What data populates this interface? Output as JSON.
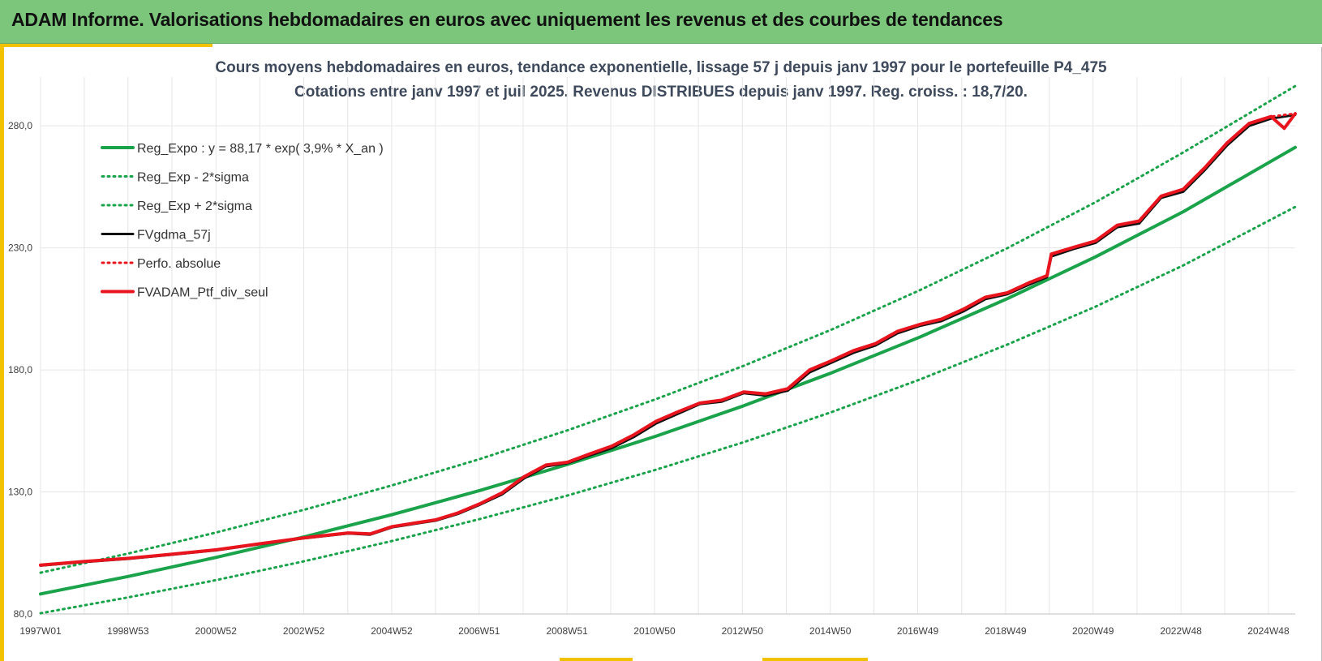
{
  "banner": {
    "title": "ADAM Informe. Valorisations hebdomadaires en euros avec uniquement les revenus et des courbes de tendances"
  },
  "colors": {
    "banner_bg": "#7bc67b",
    "accent_yellow": "#f2c200",
    "trend_green": "#1aa34a",
    "portfolio_red": "#e8141e",
    "smoothed_black": "#111111",
    "grid": "#e6e6e6"
  },
  "chart_data": {
    "type": "line",
    "title": "Cours moyens hebdomadaires  en euros, tendance exponentielle, lissage 57 j depuis janv 1997 pour le portefeuille P4_475",
    "subtitle": "Cotations entre janv 1997 et juil 2025. Revenus DISTRIBUES depuis janv 1997. Reg. croiss. : 18,7/20.",
    "xlabel": "",
    "ylabel": "",
    "x_range": [
      1997.0,
      2025.55
    ],
    "ylim": [
      80,
      300
    ],
    "y_ticks": [
      80,
      130,
      180,
      230,
      280
    ],
    "y_tick_labels": [
      "80,0",
      "130,0",
      "180,0",
      "230,0",
      "280,0"
    ],
    "x_ticks": [
      1997.0,
      1998.99,
      2000.99,
      2002.99,
      2004.99,
      2006.98,
      2008.98,
      2010.97,
      2012.97,
      2014.97,
      2016.96,
      2018.96,
      2020.95,
      2022.95,
      2024.94
    ],
    "x_tick_labels": [
      "1997W01",
      "1998W53",
      "2000W52",
      "2002W52",
      "2004W52",
      "2006W51",
      "2008W51",
      "2010W50",
      "2012W50",
      "2014W50",
      "2016W49",
      "2018W49",
      "2020W49",
      "2022W48",
      "2024W48"
    ],
    "grid": true,
    "legend_position": "top-left",
    "series": [
      {
        "name": "Reg_Expo : y = 88,17 *  exp( 3,9% *  X_an )",
        "style": "solid-thick",
        "color": "#1aa34a",
        "x": [
          1997,
          1999,
          2001,
          2003,
          2005,
          2007,
          2009,
          2011,
          2013,
          2015,
          2017,
          2019,
          2021,
          2023,
          2025.55
        ],
        "y": [
          88.2,
          95.4,
          103.2,
          111.6,
          120.7,
          130.6,
          141.3,
          152.8,
          165.3,
          178.8,
          193.4,
          209.2,
          226.3,
          244.8,
          271.2
        ]
      },
      {
        "name": "Reg_Exp - 2*sigma",
        "style": "dotted",
        "color": "#1aa34a",
        "x": [
          1997,
          1999,
          2001,
          2003,
          2005,
          2007,
          2009,
          2011,
          2013,
          2015,
          2017,
          2019,
          2021,
          2023,
          2025.55
        ],
        "y": [
          80.3,
          86.8,
          93.9,
          101.6,
          109.9,
          118.9,
          128.6,
          139.1,
          150.4,
          162.7,
          176.0,
          190.4,
          205.9,
          222.8,
          246.8
        ]
      },
      {
        "name": "Reg_Exp + 2*sigma",
        "style": "dotted",
        "color": "#1aa34a",
        "x": [
          1997,
          1999,
          2001,
          2003,
          2005,
          2007,
          2009,
          2011,
          2013,
          2015,
          2017,
          2019,
          2021,
          2023,
          2025.55
        ],
        "y": [
          96.9,
          104.8,
          113.4,
          122.7,
          132.7,
          143.5,
          155.3,
          168.0,
          181.7,
          196.5,
          212.6,
          229.9,
          248.7,
          269.1,
          296.3
        ]
      },
      {
        "name": "FVgdma_57j",
        "style": "solid",
        "color": "#111111",
        "x": [
          1997.0,
          1998.0,
          1999.0,
          2000.0,
          2001.0,
          2002.0,
          2003.0,
          2004.0,
          2004.5,
          2005.0,
          2006.0,
          2006.5,
          2007.0,
          2007.5,
          2008.0,
          2008.5,
          2009.0,
          2009.5,
          2010.0,
          2010.5,
          2011.0,
          2011.5,
          2012.0,
          2012.5,
          2013.0,
          2013.5,
          2014.0,
          2014.5,
          2015.0,
          2015.5,
          2016.0,
          2016.5,
          2017.0,
          2017.5,
          2018.0,
          2018.5,
          2019.0,
          2019.5,
          2019.9,
          2020.0,
          2020.5,
          2021.0,
          2021.5,
          2022.0,
          2022.5,
          2023.0,
          2023.5,
          2024.0,
          2024.5,
          2025.0,
          2025.55
        ],
        "y": [
          99.8,
          101.3,
          102.6,
          104.3,
          106.1,
          108.6,
          111.0,
          113.0,
          112.5,
          115.5,
          118.3,
          121.0,
          124.8,
          129.0,
          135.5,
          140.5,
          141.8,
          145.0,
          148.0,
          152.5,
          158.0,
          162.0,
          166.0,
          167.0,
          170.5,
          169.5,
          171.5,
          179.0,
          183.0,
          187.0,
          190.0,
          195.0,
          198.0,
          200.0,
          204.0,
          209.0,
          211.0,
          215.0,
          218.0,
          226.5,
          229.5,
          232.0,
          238.5,
          240.0,
          250.5,
          253.0,
          262.0,
          272.0,
          280.0,
          283.0,
          284.5
        ]
      },
      {
        "name": "Perfo. absolue",
        "style": "dotted",
        "color": "#e8141e",
        "x": [
          1997.0,
          1998.0,
          1999.0,
          2000.0,
          2001.0,
          2002.0,
          2003.0,
          2004.0,
          2004.5,
          2005.0,
          2006.0,
          2006.5,
          2007.0,
          2007.5,
          2008.0,
          2008.5,
          2009.0,
          2009.5,
          2010.0,
          2010.5,
          2011.0,
          2011.5,
          2012.0,
          2012.5,
          2013.0,
          2013.5,
          2014.0,
          2014.5,
          2015.0,
          2015.5,
          2016.0,
          2016.5,
          2017.0,
          2017.5,
          2018.0,
          2018.5,
          2019.0,
          2019.5,
          2019.9,
          2020.0,
          2020.5,
          2021.0,
          2021.5,
          2022.0,
          2022.5,
          2023.0,
          2023.5,
          2024.0,
          2024.5,
          2025.0,
          2025.55
        ],
        "y": [
          100.0,
          101.5,
          102.8,
          104.5,
          106.3,
          108.8,
          111.2,
          113.2,
          112.8,
          115.8,
          118.6,
          121.4,
          125.2,
          129.6,
          136.2,
          141.0,
          142.2,
          145.6,
          148.8,
          153.4,
          158.9,
          162.8,
          166.4,
          167.6,
          171.0,
          170.2,
          172.3,
          180.0,
          183.8,
          187.9,
          190.8,
          195.8,
          198.6,
          200.8,
          204.9,
          209.8,
          211.6,
          215.8,
          218.6,
          227.5,
          230.2,
          232.8,
          239.3,
          241.0,
          251.2,
          254.0,
          263.0,
          273.0,
          281.0,
          283.8,
          285.0
        ]
      },
      {
        "name": "FVADAM_Ptf_div_seul",
        "style": "solid-thick",
        "color": "#e8141e",
        "x": [
          1997.0,
          1998.0,
          1999.0,
          2000.0,
          2001.0,
          2002.0,
          2003.0,
          2004.0,
          2004.5,
          2005.0,
          2006.0,
          2006.5,
          2007.0,
          2007.5,
          2008.0,
          2008.5,
          2009.0,
          2009.5,
          2010.0,
          2010.5,
          2011.0,
          2011.5,
          2012.0,
          2012.5,
          2013.0,
          2013.5,
          2014.0,
          2014.5,
          2015.0,
          2015.5,
          2016.0,
          2016.5,
          2017.0,
          2017.5,
          2018.0,
          2018.5,
          2019.0,
          2019.5,
          2019.9,
          2020.0,
          2020.5,
          2021.0,
          2021.5,
          2022.0,
          2022.5,
          2023.0,
          2023.5,
          2024.0,
          2024.5,
          2025.0,
          2025.3,
          2025.55
        ],
        "y": [
          100.0,
          101.5,
          102.8,
          104.5,
          106.3,
          108.8,
          111.2,
          113.2,
          112.8,
          115.8,
          118.6,
          121.4,
          125.2,
          129.6,
          136.2,
          141.0,
          142.2,
          145.6,
          148.8,
          153.4,
          158.9,
          162.8,
          166.4,
          167.6,
          171.0,
          170.2,
          172.3,
          180.0,
          183.8,
          187.9,
          190.8,
          195.8,
          198.6,
          200.8,
          204.9,
          209.8,
          211.6,
          215.8,
          218.6,
          227.5,
          230.2,
          232.8,
          239.3,
          241.0,
          251.2,
          254.0,
          263.0,
          273.0,
          281.0,
          283.8,
          279.0,
          285.0
        ]
      }
    ]
  }
}
